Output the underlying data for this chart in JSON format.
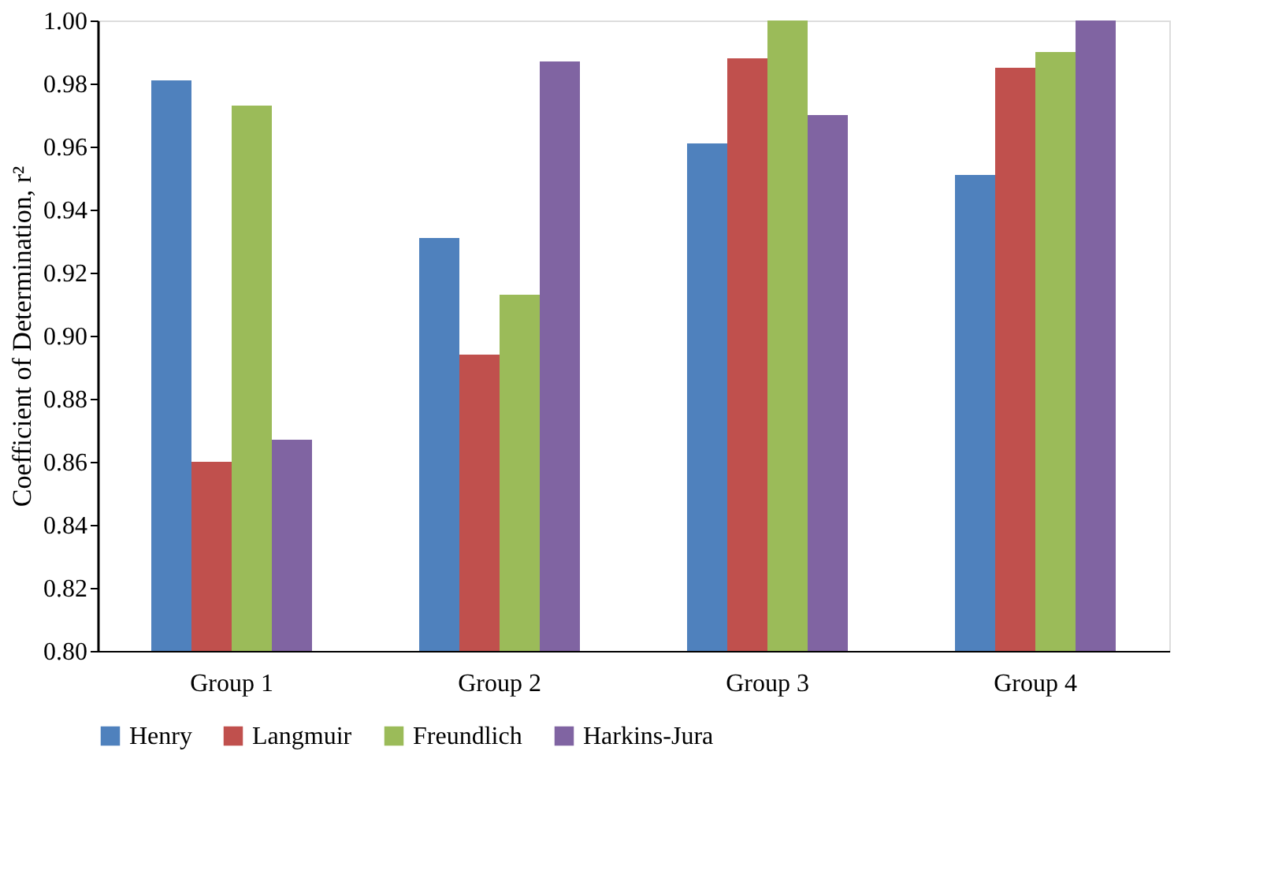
{
  "chart_data": {
    "type": "bar",
    "ylabel": "Coefficient  of Determination, r²",
    "categories": [
      "Group 1",
      "Group 2",
      "Group 3",
      "Group 4"
    ],
    "series": [
      {
        "name": "Henry",
        "color": "#4f81bd",
        "values": [
          0.981,
          0.931,
          0.961,
          0.951
        ]
      },
      {
        "name": "Langmuir",
        "color": "#c0504d",
        "values": [
          0.86,
          0.894,
          0.988,
          0.985
        ]
      },
      {
        "name": "Freundlich",
        "color": "#9bbb59",
        "values": [
          0.973,
          0.913,
          1.0,
          0.99
        ]
      },
      {
        "name": "Harkins-Jura",
        "color": "#8064a2",
        "values": [
          0.867,
          0.987,
          0.97,
          1.0
        ]
      }
    ],
    "ylim": [
      0.8,
      1.0
    ],
    "yticks": [
      {
        "value": 0.8,
        "label": "0.80"
      },
      {
        "value": 0.82,
        "label": "0.82"
      },
      {
        "value": 0.84,
        "label": "0.84"
      },
      {
        "value": 0.86,
        "label": "0.86"
      },
      {
        "value": 0.88,
        "label": "0.88"
      },
      {
        "value": 0.9,
        "label": "0.90"
      },
      {
        "value": 0.92,
        "label": "0.92"
      },
      {
        "value": 0.94,
        "label": "0.94"
      },
      {
        "value": 0.96,
        "label": "0.96"
      },
      {
        "value": 0.98,
        "label": "0.98"
      },
      {
        "value": 1.0,
        "label": "1.00"
      }
    ],
    "grid": false,
    "legend": "bottom"
  }
}
